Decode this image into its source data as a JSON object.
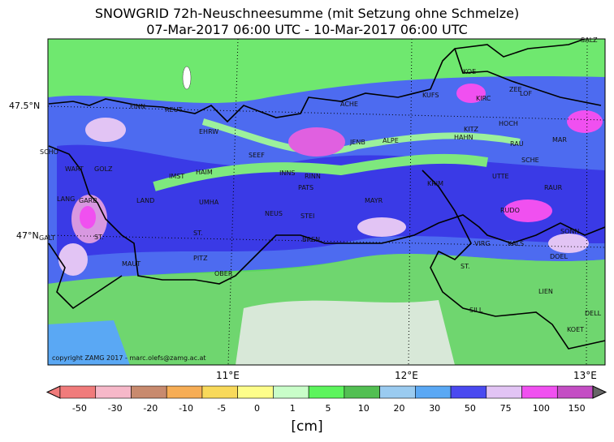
{
  "header": {
    "title_line1": "SNOWGRID 72h-Neuschneesumme (mit Setzung ohne Schmelze)",
    "title_line2": "07-Mar-2017 06:00 UTC - 10-Mar-2017 06:00 UTC"
  },
  "map": {
    "copyright": "copyright ZAMG 2017 - marc.olefs@zamg.ac.at",
    "lat_labels": [
      "47.5°N",
      "47°N"
    ],
    "lon_labels": [
      "11°E",
      "12°E",
      "13°E"
    ],
    "stations": [
      "SALZ",
      "KOE",
      "KUFS",
      "KIRC",
      "ZEE",
      "LOF",
      "REUT",
      "FINN",
      "ACHE",
      "HOCH",
      "EHRW",
      "KITZ",
      "HAHN",
      "JENB",
      "ALPE",
      "MAR",
      "SCHO",
      "SEEF",
      "RAU",
      "SCHE",
      "WART",
      "GOLZ",
      "HAIM",
      "INNS",
      "RINN",
      "IMST",
      "UTTE",
      "PATS",
      "KRIM",
      "RAUR",
      "LANG",
      "GARB",
      "LAND",
      "UMHA",
      "MAYR",
      "RUDO",
      "NEUS",
      "STEI",
      "SONN",
      "BREN",
      "ST.",
      "VIRG",
      "KALS",
      "ST.",
      "PITZ",
      "DOEL",
      "OBER",
      "MAUT",
      "LIEN",
      "SILL",
      "ST.",
      "DELL",
      "KOET",
      "GALT"
    ],
    "boundary_color": "#000000"
  },
  "legend": {
    "ticks": [
      "-50",
      "-30",
      "-20",
      "-10",
      "-5",
      "0",
      "1",
      "5",
      "10",
      "20",
      "30",
      "50",
      "75",
      "100",
      "150"
    ],
    "colors": [
      "#f07b7b",
      "#f6b8c9",
      "#c88a6e",
      "#f6ad55",
      "#f8d95a",
      "#fdfd8a",
      "#c9fdc9",
      "#5cf45c",
      "#52bf52",
      "#9acbf0",
      "#5aa8f4",
      "#4a4af0",
      "#e2c4f4",
      "#f050f0",
      "#c44ec4"
    ],
    "unit": "[cm]"
  }
}
